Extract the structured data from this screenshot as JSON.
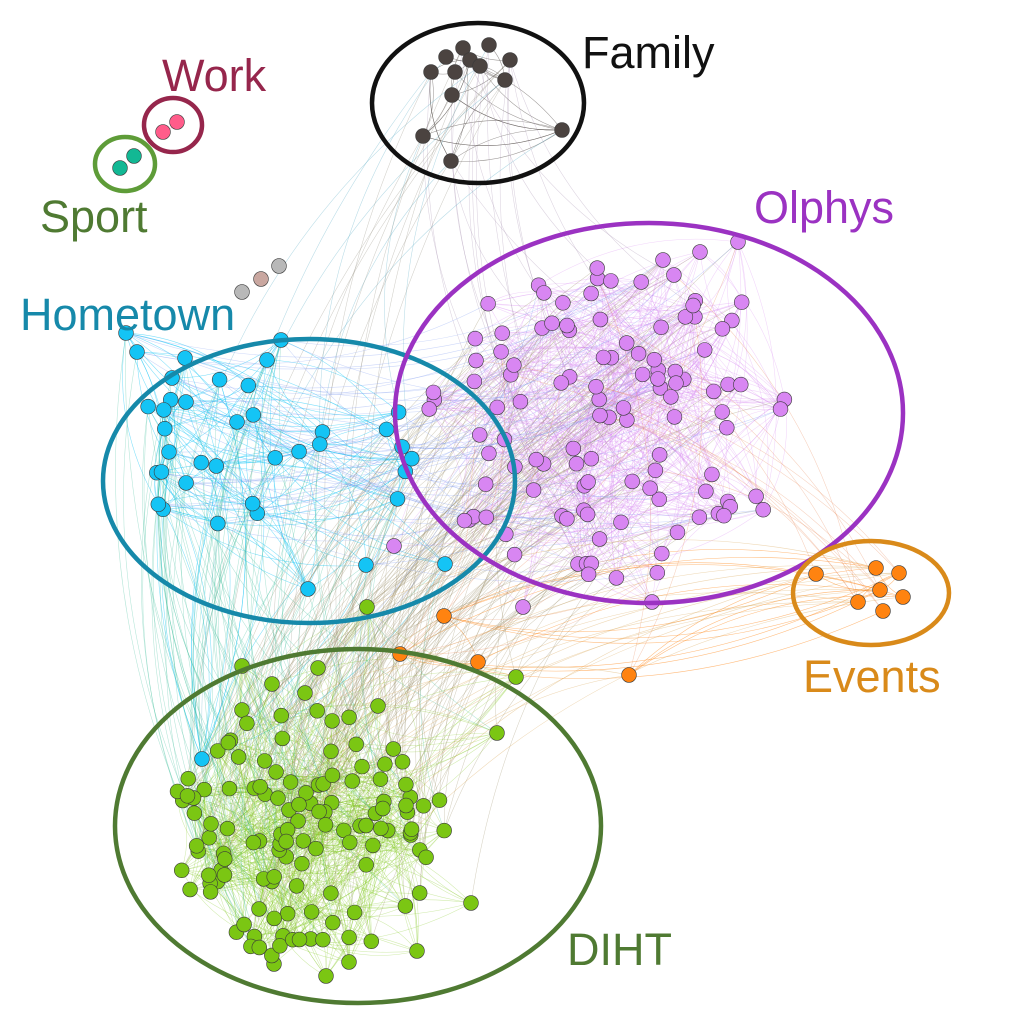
{
  "communities": [
    {
      "id": "family",
      "label": "Family",
      "color": "#4b4340",
      "ring_color": "#111111",
      "label_color": "#111111"
    },
    {
      "id": "work",
      "label": "Work",
      "color": "#ff5c8a",
      "ring_color": "#96264c",
      "label_color": "#96264c"
    },
    {
      "id": "sport",
      "label": "Sport",
      "color": "#12b894",
      "ring_color": "#5e9c38",
      "label_color": "#4f7a32"
    },
    {
      "id": "hometown",
      "label": "Hometown",
      "color": "#14c4f5",
      "ring_color": "#1689aa",
      "label_color": "#1689aa"
    },
    {
      "id": "olphys",
      "label": "Olphys",
      "color": "#d886f2",
      "ring_color": "#9b32c2",
      "label_color": "#9b32c2"
    },
    {
      "id": "events",
      "label": "Events",
      "color": "#ff8310",
      "ring_color": "#d98a1a",
      "label_color": "#d98a1a"
    },
    {
      "id": "diht",
      "label": "DIHT",
      "color": "#7bc613",
      "ring_color": "#4f7a32",
      "label_color": "#4f7a32"
    }
  ],
  "unlabeled_colors": [
    "#b8b8b8",
    "#c9a7a0"
  ],
  "node_counts": {
    "family": 12,
    "work": 2,
    "sport": 2,
    "hometown": 40,
    "olphys": 118,
    "events": 11,
    "diht": 135,
    "unlabeled": 3
  }
}
